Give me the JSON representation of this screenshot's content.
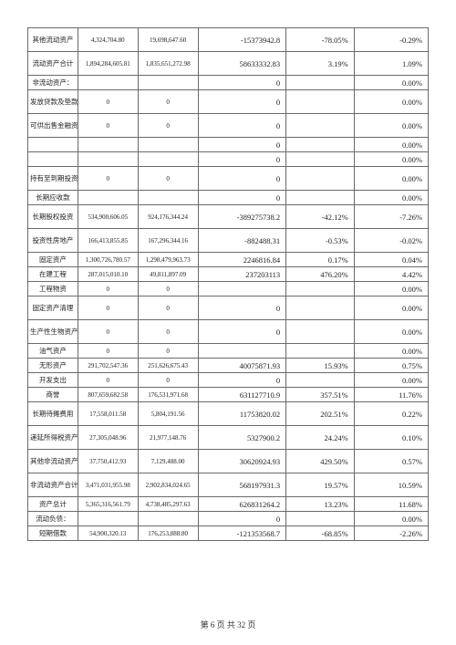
{
  "footer": "第 6 页 共 32 页",
  "rows": [
    {
      "label": "其他流动资产",
      "c1": "4,324,704.80",
      "c2": "19,698,647.60",
      "diff": "-15373942.8",
      "pct1": "-78.05%",
      "pct2": "-0.29%",
      "tall": true
    },
    {
      "label": "流动资产合计",
      "c1": "1,894,284,605.81",
      "c2": "1,835,651,272.98",
      "diff": "58633332.83",
      "pct1": "3.19%",
      "pct2": "1.09%",
      "tall": true
    },
    {
      "label": "非流动资产：",
      "c1": "",
      "c2": "",
      "diff": "0",
      "pct1": "",
      "pct2": "0.00%"
    },
    {
      "label": "发放贷款及垫款",
      "c1": "0",
      "c2": "0",
      "diff": "0",
      "pct1": "",
      "pct2": "0.00%",
      "tall": true
    },
    {
      "label": "可供出售金融资产",
      "c1": "0",
      "c2": "0",
      "diff": "0",
      "pct1": "",
      "pct2": "0.00%",
      "tall": true
    },
    {
      "_blank": true,
      "label": "",
      "c1": "",
      "c2": "",
      "diff": "0",
      "pct1": "",
      "pct2": "0.00%"
    },
    {
      "_blank": true,
      "label": "",
      "c1": "",
      "c2": "",
      "diff": "0",
      "pct1": "",
      "pct2": "0.00%"
    },
    {
      "label": "持有至到期投资",
      "c1": "0",
      "c2": "0",
      "diff": "0",
      "pct1": "",
      "pct2": "0.00%",
      "tall": true
    },
    {
      "label": "长期应收款",
      "c1": "",
      "c2": "",
      "diff": "0",
      "pct1": "",
      "pct2": "0.00%"
    },
    {
      "label": "长期股权投资",
      "c1": "534,900,606.05",
      "c2": "924,176,344.24",
      "diff": "-389275738.2",
      "pct1": "-42.12%",
      "pct2": "-7.26%",
      "tall": true
    },
    {
      "label": "投资性房地产",
      "c1": "166,413,855.85",
      "c2": "167,296,344.16",
      "diff": "-882488.31",
      "pct1": "-0.53%",
      "pct2": "-0.02%",
      "tall": true
    },
    {
      "label": "固定资产",
      "c1": "1,300,726,780.57",
      "c2": "1,298,479,963.73",
      "diff": "2246816.84",
      "pct1": "0.17%",
      "pct2": "0.04%"
    },
    {
      "label": "在建工程",
      "c1": "287,015,010.10",
      "c2": "49,811,897.09",
      "diff": "237203113",
      "pct1": "476.20%",
      "pct2": "4.42%"
    },
    {
      "label": "工程物资",
      "c1": "0",
      "c2": "0",
      "diff": "",
      "pct1": "",
      "pct2": "0.00%"
    },
    {
      "label": "固定资产清理",
      "c1": "0",
      "c2": "0",
      "diff": "0",
      "pct1": "",
      "pct2": "0.00%",
      "tall": true
    },
    {
      "label": "生产性生物资产",
      "c1": "0",
      "c2": "0",
      "diff": "0",
      "pct1": "",
      "pct2": "0.00%",
      "tall": true
    },
    {
      "label": "油气资产",
      "c1": "0",
      "c2": "0",
      "diff": "",
      "pct1": "",
      "pct2": "0.00%"
    },
    {
      "label": "无形资产",
      "c1": "291,702,547.36",
      "c2": "251,626,675.43",
      "diff": "40075871.93",
      "pct1": "15.93%",
      "pct2": "0.75%"
    },
    {
      "label": "开发支出",
      "c1": "0",
      "c2": "0",
      "diff": "0",
      "pct1": "",
      "pct2": "0.00%"
    },
    {
      "label": "商誉",
      "c1": "807,659,682.58",
      "c2": "176,531,971.68",
      "diff": "631127710.9",
      "pct1": "357.51%",
      "pct2": "11.76%"
    },
    {
      "label": "长期待摊费用",
      "c1": "17,558,011.58",
      "c2": "5,804,191.56",
      "diff": "11753820.02",
      "pct1": "202.51%",
      "pct2": "0.22%",
      "tall": true
    },
    {
      "label": "递延所得税资产",
      "c1": "27,305,048.96",
      "c2": "21,977,148.76",
      "diff": "5327900.2",
      "pct1": "24.24%",
      "pct2": "0.10%",
      "tall": true
    },
    {
      "label": "其他非流动资产",
      "c1": "37,750,412.93",
      "c2": "7,129,488.00",
      "diff": "30620924.93",
      "pct1": "429.50%",
      "pct2": "0.57%",
      "tall": true
    },
    {
      "label": "非流动资产合计",
      "c1": "3,471,031,955.98",
      "c2": "2,902,834,024.65",
      "diff": "568197931.3",
      "pct1": "19.57%",
      "pct2": "10.59%",
      "tall": true
    },
    {
      "label": "资产总计",
      "c1": "5,365,316,561.79",
      "c2": "4,738,485,297.63",
      "diff": "626831264.2",
      "pct1": "13.23%",
      "pct2": "11.68%"
    },
    {
      "label": "流动负债：",
      "c1": "",
      "c2": "",
      "diff": "0",
      "pct1": "",
      "pct2": "0.00%"
    },
    {
      "label": "短期借款",
      "c1": "54,900,320.13",
      "c2": "176,253,888.80",
      "diff": "-121353568.7",
      "pct1": "-68.85%",
      "pct2": "-2.26%"
    }
  ]
}
